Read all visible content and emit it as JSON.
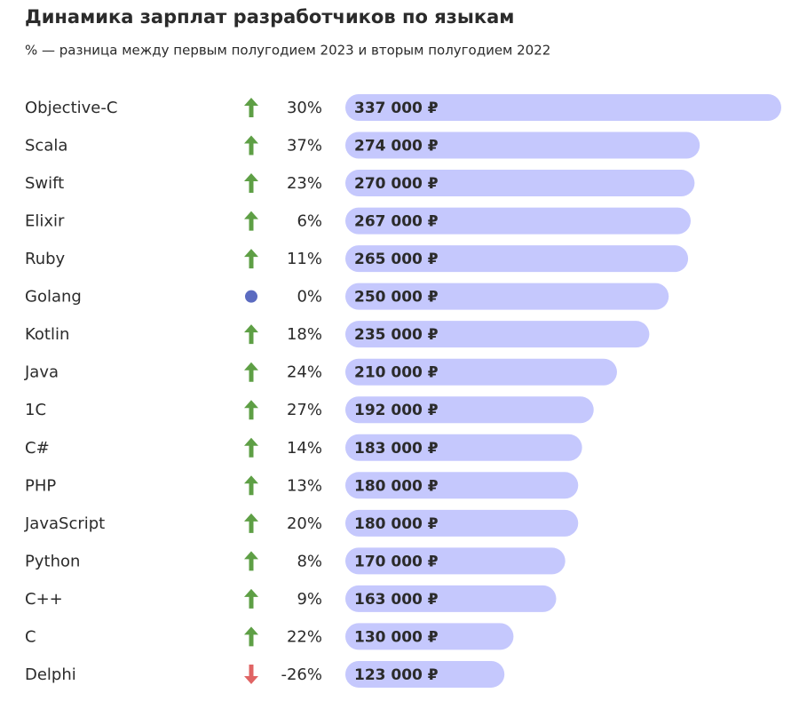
{
  "chart_data": {
    "type": "bar",
    "orientation": "horizontal",
    "title": "Динамика зарплат разработчиков по языкам",
    "subtitle": "% — разница между первым полугодием 2023 и вторым полугодием 2022",
    "categories": [
      "Objective-C",
      "Scala",
      "Swift",
      "Elixir",
      "Ruby",
      "Golang",
      "Kotlin",
      "Java",
      "1C",
      "C#",
      "PHP",
      "JavaScript",
      "Python",
      "C++",
      "C",
      "Delphi"
    ],
    "values": [
      337000,
      274000,
      270000,
      267000,
      265000,
      250000,
      235000,
      210000,
      192000,
      183000,
      180000,
      180000,
      170000,
      163000,
      130000,
      123000
    ],
    "value_labels": [
      "337 000 ₽",
      "274 000 ₽",
      "270 000 ₽",
      "267 000 ₽",
      "265 000 ₽",
      "250 000 ₽",
      "235 000 ₽",
      "210 000 ₽",
      "192 000 ₽",
      "183 000 ₽",
      "180 000 ₽",
      "180 000 ₽",
      "170 000 ₽",
      "163 000 ₽",
      "130 000 ₽",
      "123 000 ₽"
    ],
    "changes": [
      30,
      37,
      23,
      6,
      11,
      0,
      18,
      24,
      27,
      14,
      13,
      20,
      8,
      9,
      22,
      -26
    ],
    "change_labels": [
      "30%",
      "37%",
      "23%",
      "6%",
      "11%",
      "0%",
      "18%",
      "24%",
      "27%",
      "14%",
      "13%",
      "20%",
      "8%",
      "9%",
      "22%",
      "-26%"
    ],
    "color": "#c5c8fd",
    "up_color": "#5e9f45",
    "down_color": "#e06464",
    "flat_color": "#5b6bc0"
  }
}
